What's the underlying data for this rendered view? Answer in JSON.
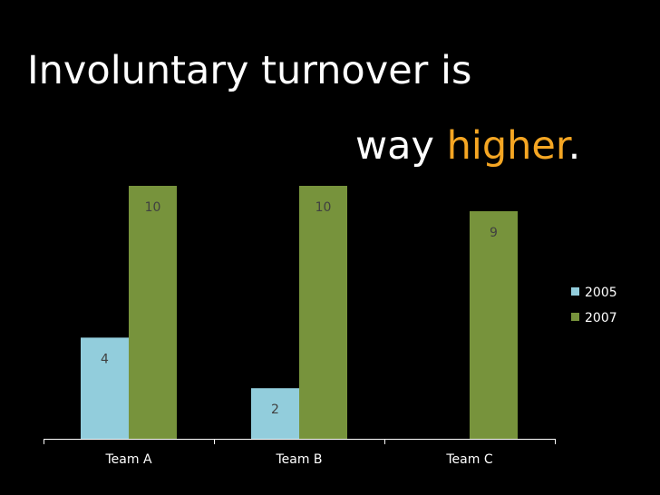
{
  "slide": {
    "title_line1": "Involuntary turnover is",
    "title_line2_prefix": "way ",
    "title_highlight": "higher",
    "title_suffix": ".",
    "highlight_color": "#f5a623",
    "background_color": "#000000"
  },
  "chart_data": {
    "type": "bar",
    "categories": [
      "Team A",
      "Team B",
      "Team C"
    ],
    "series": [
      {
        "name": "2005",
        "values": [
          4,
          2,
          0
        ],
        "labels": [
          "4",
          "2",
          ""
        ],
        "color": "#92cddc"
      },
      {
        "name": "2007",
        "values": [
          10,
          10,
          9
        ],
        "labels": [
          "10",
          "10",
          "9"
        ],
        "color": "#77933c"
      }
    ],
    "ylim": [
      0,
      10
    ],
    "grid": false,
    "legend": "right",
    "label_color": "#404040",
    "tick_label_color": "#ffffff"
  }
}
